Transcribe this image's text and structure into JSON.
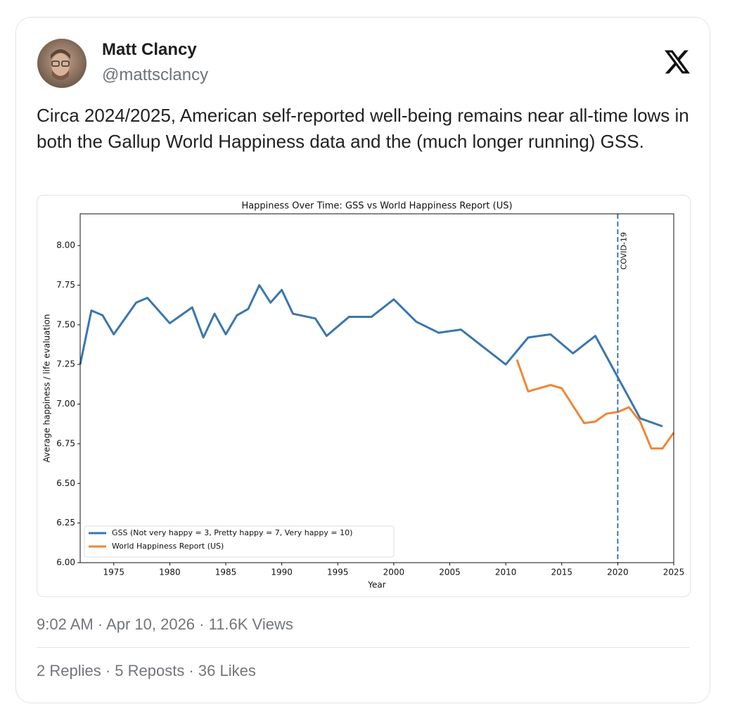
{
  "author": {
    "name": "Matt Clancy",
    "handle": "@mattsclancy"
  },
  "text": "Circa 2024/2025, American self-reported well-being remains near all-time lows in both the Gallup World Happiness data and the (much longer running) GSS.",
  "chart_data": {
    "type": "line",
    "title": "Happiness Over Time: GSS vs World Happiness Report (US)",
    "xlabel": "Year",
    "ylabel": "Average happiness / life evaluation",
    "xlim": [
      1972,
      2025
    ],
    "ylim": [
      6,
      8.2
    ],
    "xticks": [
      1975,
      1980,
      1985,
      1990,
      1995,
      2000,
      2005,
      2010,
      2015,
      2020,
      2025
    ],
    "yticks": [
      {
        "value": 6,
        "label": "6.00"
      },
      {
        "value": 6.25,
        "label": "6.25"
      },
      {
        "value": 6.5,
        "label": "6.50"
      },
      {
        "value": 6.75,
        "label": "6.75"
      },
      {
        "value": 7,
        "label": "7.00"
      },
      {
        "value": 7.25,
        "label": "7.25"
      },
      {
        "value": 7.5,
        "label": "7.50"
      },
      {
        "value": 7.75,
        "label": "7.75"
      },
      {
        "value": 8,
        "label": "8.00"
      }
    ],
    "legend": "lower left",
    "series": [
      {
        "name": "GSS (Not very happy = 3, Pretty happy = 7, Very happy = 10)",
        "color": "#3a76af",
        "x": [
          1972,
          1973,
          1974,
          1975,
          1977,
          1978,
          1980,
          1982,
          1983,
          1984,
          1985,
          1986,
          1987,
          1988,
          1989,
          1990,
          1991,
          1993,
          1994,
          1996,
          1998,
          2000,
          2002,
          2004,
          2006,
          2008,
          2010,
          2012,
          2014,
          2016,
          2018,
          2022,
          2024
        ],
        "values": [
          7.25,
          7.59,
          7.56,
          7.44,
          7.64,
          7.67,
          7.51,
          7.61,
          7.42,
          7.57,
          7.44,
          7.56,
          7.6,
          7.75,
          7.64,
          7.72,
          7.57,
          7.54,
          7.43,
          7.55,
          7.55,
          7.66,
          7.52,
          7.45,
          7.47,
          7.36,
          7.25,
          7.42,
          7.44,
          7.32,
          7.43,
          6.91,
          6.86
        ]
      },
      {
        "name": "World Happiness Report (US)",
        "color": "#ef8636",
        "x": [
          2011,
          2012,
          2013,
          2014,
          2015,
          2016,
          2017,
          2018,
          2019,
          2020,
          2021,
          2022,
          2023,
          2024,
          2025
        ],
        "values": [
          7.28,
          7.08,
          7.1,
          7.12,
          7.1,
          6.99,
          6.88,
          6.89,
          6.94,
          6.95,
          6.98,
          6.89,
          6.72,
          6.72,
          6.82
        ]
      }
    ],
    "annotations": [
      {
        "text": "COVID-19",
        "x": 2020
      }
    ]
  },
  "meta": "9:02 AM · Apr 10, 2026 · 11.6K Views",
  "stats": "2 Replies · 5 Reposts · 36 Likes"
}
